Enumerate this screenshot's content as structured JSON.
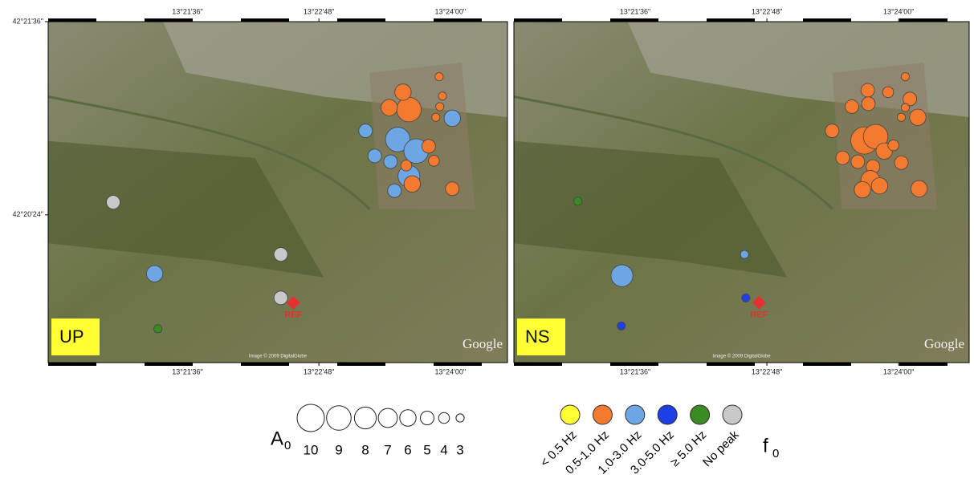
{
  "chart_data": [
    {
      "type": "scatter",
      "label": "UP",
      "xlim": [
        13.3388,
        13.4087
      ],
      "ylim": [
        42.3247,
        42.36
      ],
      "xticks": [
        {
          "value": 13.36,
          "label": "13°21'36\""
        },
        {
          "value": 13.38,
          "label": "13°22'48\""
        },
        {
          "value": 13.4,
          "label": "13°24'00\""
        }
      ],
      "yticks": [
        {
          "value": 42.36,
          "label": "42°21'36\""
        },
        {
          "value": 42.34,
          "label": "42°20'24\""
        }
      ],
      "ref": {
        "label": "REF",
        "x": 13.3761,
        "y": 42.3309
      },
      "attribution": "Google",
      "imagery": "Image © 2009 DigitalGlobe",
      "points": [
        {
          "x": 13.3937,
          "y": 42.3509,
          "size": 9,
          "f0": 1
        },
        {
          "x": 13.3983,
          "y": 42.3543,
          "size": 3,
          "f0": 1
        },
        {
          "x": 13.3928,
          "y": 42.3527,
          "size": 6,
          "f0": 1
        },
        {
          "x": 13.3907,
          "y": 42.3511,
          "size": 6,
          "f0": 1
        },
        {
          "x": 13.3988,
          "y": 42.3523,
          "size": 3,
          "f0": 1
        },
        {
          "x": 13.3984,
          "y": 42.3512,
          "size": 3,
          "f0": 1
        },
        {
          "x": 13.3978,
          "y": 42.3501,
          "size": 3,
          "f0": 1
        },
        {
          "x": 13.4003,
          "y": 42.35,
          "size": 6,
          "f0": 2
        },
        {
          "x": 13.3871,
          "y": 42.3487,
          "size": 5,
          "f0": 2
        },
        {
          "x": 13.392,
          "y": 42.3478,
          "size": 9,
          "f0": 2
        },
        {
          "x": 13.3948,
          "y": 42.3466,
          "size": 9,
          "f0": 2
        },
        {
          "x": 13.3967,
          "y": 42.3471,
          "size": 5,
          "f0": 1
        },
        {
          "x": 13.3975,
          "y": 42.3456,
          "size": 4,
          "f0": 1
        },
        {
          "x": 13.3885,
          "y": 42.3461,
          "size": 5,
          "f0": 2
        },
        {
          "x": 13.3909,
          "y": 42.3455,
          "size": 5,
          "f0": 2
        },
        {
          "x": 13.3937,
          "y": 42.344,
          "size": 8,
          "f0": 2
        },
        {
          "x": 13.3933,
          "y": 42.3451,
          "size": 4,
          "f0": 1
        },
        {
          "x": 13.3915,
          "y": 42.3425,
          "size": 5,
          "f0": 2
        },
        {
          "x": 13.3942,
          "y": 42.3432,
          "size": 6,
          "f0": 1
        },
        {
          "x": 13.4003,
          "y": 42.3427,
          "size": 5,
          "f0": 1
        },
        {
          "x": 13.355,
          "y": 42.3339,
          "size": 6,
          "f0": 2
        },
        {
          "x": 13.3487,
          "y": 42.3413,
          "size": 5,
          "f0": 5
        },
        {
          "x": 13.3742,
          "y": 42.3359,
          "size": 5,
          "f0": 5
        },
        {
          "x": 13.3742,
          "y": 42.3314,
          "size": 5,
          "f0": 5
        },
        {
          "x": 13.3555,
          "y": 42.3282,
          "size": 3,
          "f0": 4
        }
      ]
    },
    {
      "type": "scatter",
      "label": "NS",
      "xlim": [
        13.3416,
        13.4107
      ],
      "ylim": [
        42.3247,
        42.36
      ],
      "xticks": [
        {
          "value": 13.36,
          "label": "13°21'36\""
        },
        {
          "value": 13.38,
          "label": "13°22'48\""
        },
        {
          "value": 13.4,
          "label": "13°24'00\""
        }
      ],
      "ref": {
        "label": "REF",
        "x": 13.3788,
        "y": 42.3309
      },
      "attribution": "Google",
      "imagery": "Image © 2009 DigitalGlobe",
      "points": [
        {
          "x": 13.3948,
          "y": 42.3477,
          "size": 10,
          "f0": 1
        },
        {
          "x": 13.3965,
          "y": 42.3481,
          "size": 9,
          "f0": 1
        },
        {
          "x": 13.401,
          "y": 42.3543,
          "size": 3,
          "f0": 1
        },
        {
          "x": 13.3953,
          "y": 42.3529,
          "size": 5,
          "f0": 1
        },
        {
          "x": 13.3984,
          "y": 42.3527,
          "size": 4,
          "f0": 1
        },
        {
          "x": 13.4017,
          "y": 42.352,
          "size": 5,
          "f0": 1
        },
        {
          "x": 13.401,
          "y": 42.3511,
          "size": 3,
          "f0": 1
        },
        {
          "x": 13.3954,
          "y": 42.3515,
          "size": 5,
          "f0": 1
        },
        {
          "x": 13.3929,
          "y": 42.3512,
          "size": 5,
          "f0": 1
        },
        {
          "x": 13.4004,
          "y": 42.3501,
          "size": 3,
          "f0": 1
        },
        {
          "x": 13.4029,
          "y": 42.3501,
          "size": 6,
          "f0": 1
        },
        {
          "x": 13.3899,
          "y": 42.3487,
          "size": 5,
          "f0": 1
        },
        {
          "x": 13.3978,
          "y": 42.3466,
          "size": 6,
          "f0": 1
        },
        {
          "x": 13.3992,
          "y": 42.3472,
          "size": 4,
          "f0": 1
        },
        {
          "x": 13.3915,
          "y": 42.3459,
          "size": 5,
          "f0": 1
        },
        {
          "x": 13.3938,
          "y": 42.3455,
          "size": 5,
          "f0": 1
        },
        {
          "x": 13.3961,
          "y": 42.345,
          "size": 5,
          "f0": 1
        },
        {
          "x": 13.4004,
          "y": 42.3454,
          "size": 5,
          "f0": 1
        },
        {
          "x": 13.3957,
          "y": 42.3436,
          "size": 7,
          "f0": 1
        },
        {
          "x": 13.3971,
          "y": 42.343,
          "size": 6,
          "f0": 1
        },
        {
          "x": 13.3945,
          "y": 42.3426,
          "size": 6,
          "f0": 1
        },
        {
          "x": 13.4031,
          "y": 42.3427,
          "size": 6,
          "f0": 1
        },
        {
          "x": 13.3766,
          "y": 42.3359,
          "size": 3,
          "f0": 2
        },
        {
          "x": 13.358,
          "y": 42.3337,
          "size": 8,
          "f0": 2
        },
        {
          "x": 13.3579,
          "y": 42.3285,
          "size": 3,
          "f0": 3
        },
        {
          "x": 13.3768,
          "y": 42.3314,
          "size": 3,
          "f0": 3
        },
        {
          "x": 13.3513,
          "y": 42.3414,
          "size": 3,
          "f0": 4
        }
      ]
    }
  ],
  "legend": {
    "size_title": "A",
    "size_subscript": "0",
    "sizes": [
      10,
      9,
      8,
      7,
      6,
      5,
      4,
      3
    ],
    "color_title": "f",
    "color_subscript": "0",
    "classes": [
      {
        "name": "< 0.5 Hz",
        "color": "#ffff33"
      },
      {
        "name": "0.5-1.0 Hz",
        "color": "#f47a30"
      },
      {
        "name": "1.0-3.0 Hz",
        "color": "#6ea6e4"
      },
      {
        "name": "3.0-5.0 Hz",
        "color": "#1f3fe6"
      },
      {
        "name": "≥ 5.0 Hz",
        "color": "#3b8a23"
      },
      {
        "name": "No peak",
        "color": "#c8c8c8"
      }
    ]
  }
}
